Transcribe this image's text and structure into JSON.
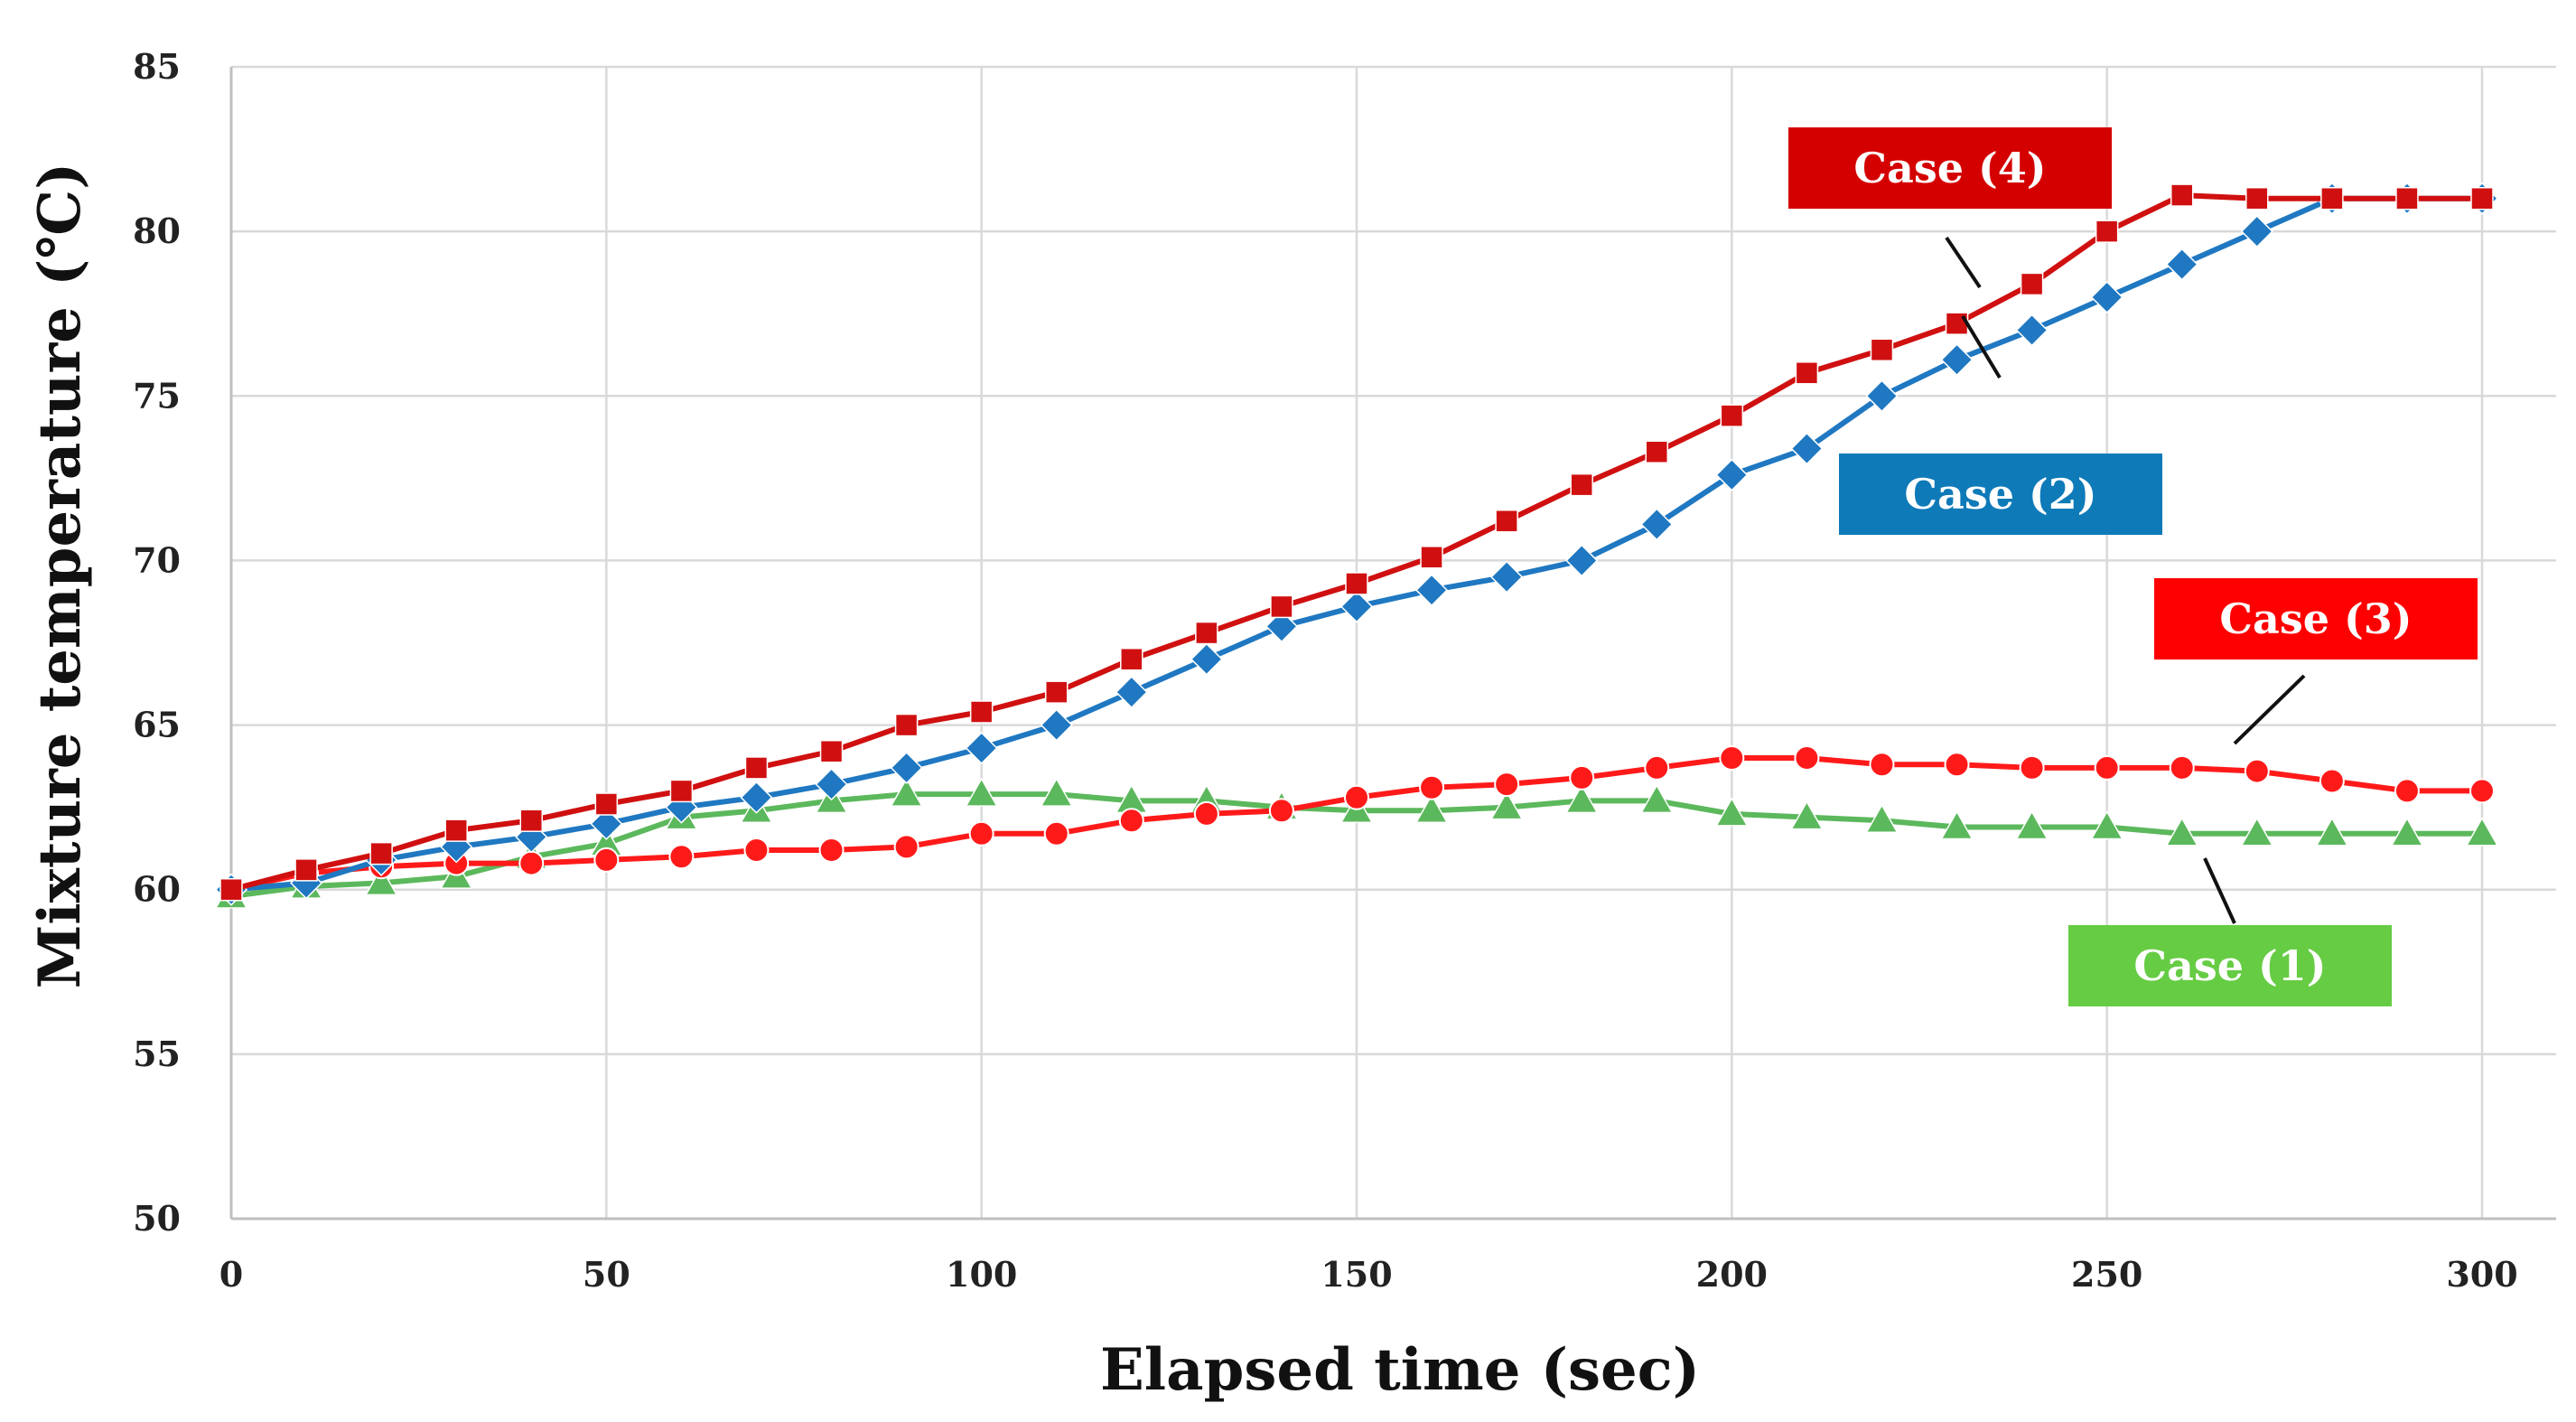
{
  "chart_data": {
    "type": "line",
    "title": "",
    "xlabel": "Elapsed time (sec)",
    "ylabel": "Mixture temperature (℃)",
    "xlim": [
      0,
      300
    ],
    "ylim": [
      50,
      85
    ],
    "x_ticks": [
      "0",
      "50",
      "100",
      "150",
      "200",
      "250",
      "300"
    ],
    "y_ticks": [
      "50",
      "55",
      "60",
      "65",
      "70",
      "75",
      "80",
      "85"
    ],
    "grid": true,
    "x": [
      0,
      10,
      20,
      30,
      40,
      50,
      60,
      70,
      80,
      90,
      100,
      110,
      120,
      130,
      140,
      150,
      160,
      170,
      180,
      190,
      200,
      210,
      220,
      230,
      240,
      250,
      260,
      270,
      280,
      290,
      300
    ],
    "series": [
      {
        "name": "Case (1)",
        "color": "#5cb85c",
        "marker": "triangle",
        "values": [
          59.8,
          60.1,
          60.2,
          60.4,
          61.0,
          61.4,
          62.2,
          62.4,
          62.7,
          62.9,
          62.9,
          62.9,
          62.7,
          62.7,
          62.5,
          62.4,
          62.4,
          62.5,
          62.7,
          62.7,
          62.3,
          62.2,
          62.1,
          61.9,
          61.9,
          61.9,
          61.7,
          61.7,
          61.7,
          61.7,
          61.7
        ]
      },
      {
        "name": "Case (2)",
        "color": "#1f78c1",
        "marker": "diamond",
        "values": [
          60.0,
          60.2,
          60.9,
          61.3,
          61.6,
          62.0,
          62.5,
          62.8,
          63.2,
          63.7,
          64.3,
          65.0,
          66.0,
          67.0,
          68.0,
          68.6,
          69.1,
          69.5,
          70.0,
          71.1,
          72.6,
          73.4,
          75.0,
          76.1,
          77.0,
          78.0,
          79.0,
          80.0,
          81.0,
          81.0,
          81.0
        ]
      },
      {
        "name": "Case (3)",
        "color": "#ff1a1a",
        "marker": "circle",
        "values": [
          60.0,
          60.5,
          60.7,
          60.8,
          60.8,
          60.9,
          61.0,
          61.2,
          61.2,
          61.3,
          61.7,
          61.7,
          62.1,
          62.3,
          62.4,
          62.8,
          63.1,
          63.2,
          63.4,
          63.7,
          64.0,
          64.0,
          63.8,
          63.8,
          63.7,
          63.7,
          63.7,
          63.6,
          63.3,
          63.0,
          63.0
        ]
      },
      {
        "name": "Case (4)",
        "color": "#d01010",
        "marker": "square",
        "values": [
          60.0,
          60.6,
          61.1,
          61.8,
          62.1,
          62.6,
          63.0,
          63.7,
          64.2,
          65.0,
          65.4,
          66.0,
          67.0,
          67.8,
          68.6,
          69.3,
          70.1,
          71.2,
          72.3,
          73.3,
          74.4,
          75.7,
          76.4,
          77.2,
          78.4,
          80.0,
          81.1,
          81.0,
          81.0,
          81.0,
          81.0
        ]
      }
    ],
    "legend_labels": [
      {
        "text": "Case (4)",
        "color": "#d40000"
      },
      {
        "text": "Case (2)",
        "color": "#0f7ab8"
      },
      {
        "text": "Case (3)",
        "color": "#ff0000"
      },
      {
        "text": "Case (1)",
        "color": "#66cc44"
      }
    ]
  }
}
